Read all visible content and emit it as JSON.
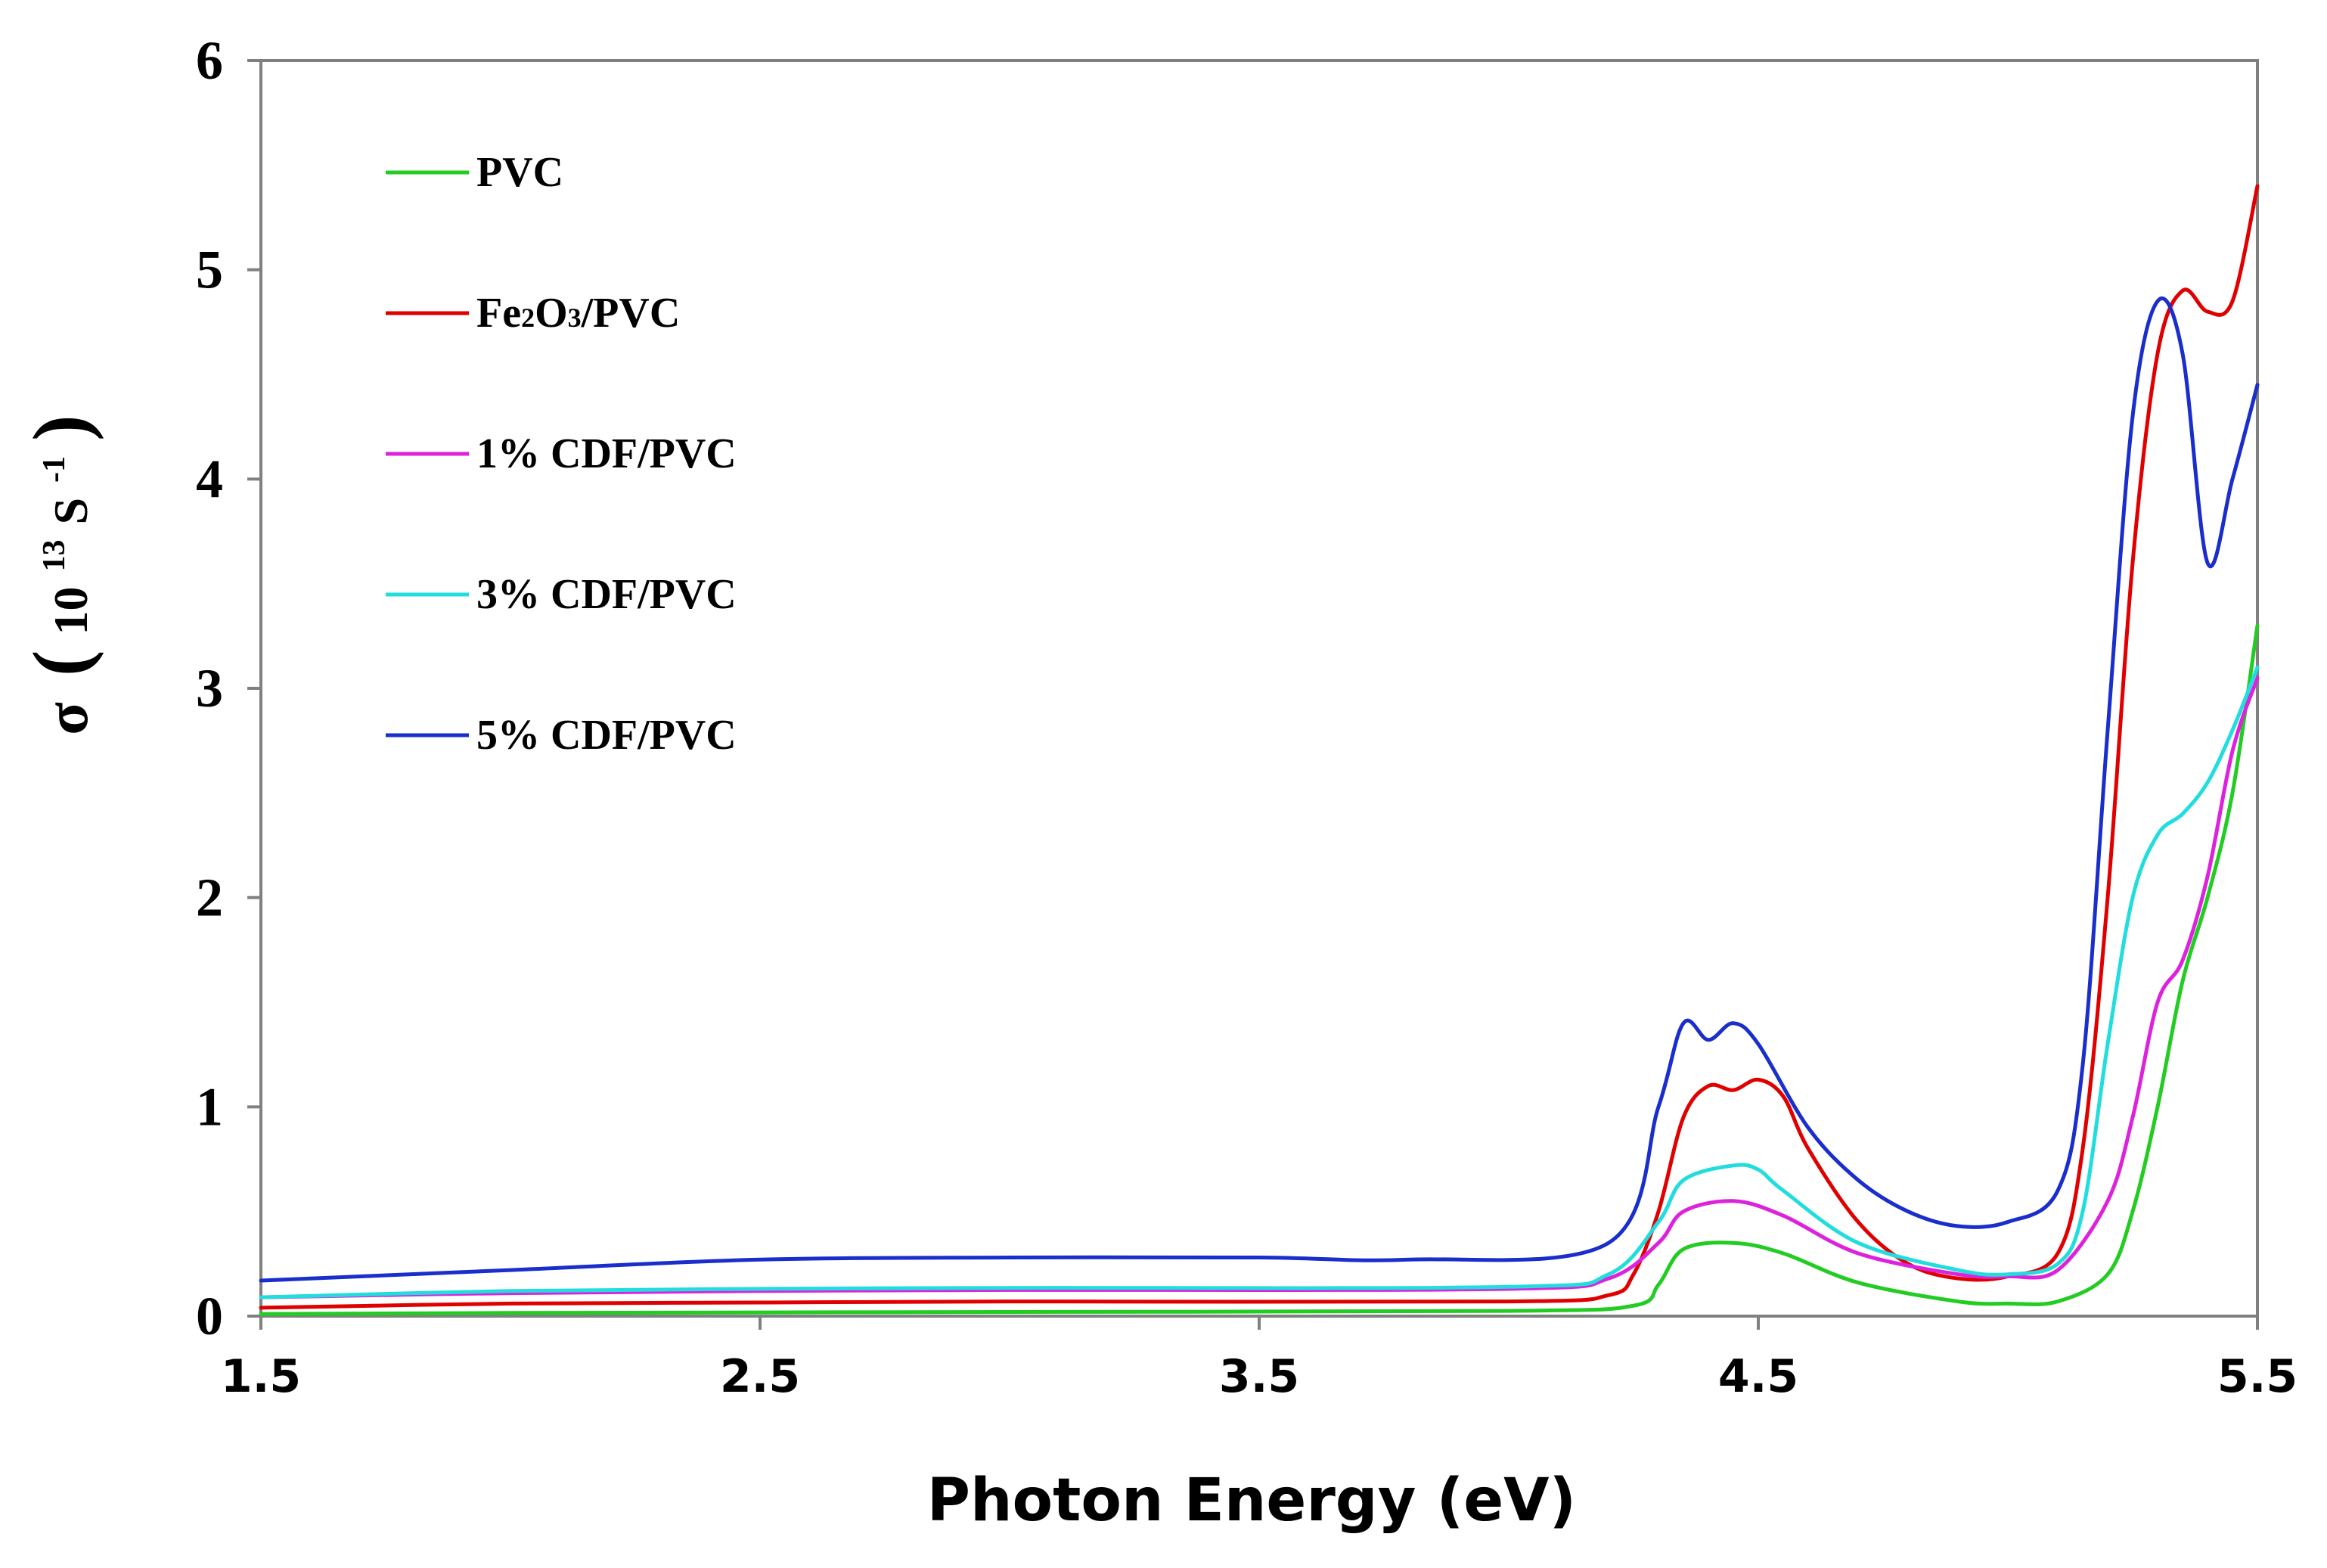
{
  "chart_data": {
    "type": "line",
    "title": "",
    "xlabel": "Photon Energy (eV)",
    "ylabel": {
      "symbol": "σ",
      "open": "(",
      "base": "10",
      "exponent": "13",
      "unit": " S",
      "unit_exponent": "-1",
      "close": ")"
    },
    "xlim": [
      1.5,
      5.5
    ],
    "ylim": [
      0,
      6
    ],
    "xticks": [
      "1.5",
      "2.5",
      "3.5",
      "4.5",
      "5.5"
    ],
    "yticks": [
      "0",
      "1",
      "2",
      "3",
      "4",
      "5",
      "6"
    ],
    "grid": false,
    "legend_position": "top-left",
    "series": [
      {
        "name": "PVC",
        "legend": {
          "main": "PVC"
        },
        "color": "#22cc22",
        "points": [
          [
            1.5,
            0.01
          ],
          [
            2.0,
            0.015
          ],
          [
            3.0,
            0.02
          ],
          [
            4.0,
            0.025
          ],
          [
            4.25,
            0.05
          ],
          [
            4.3,
            0.15
          ],
          [
            4.35,
            0.32
          ],
          [
            4.45,
            0.35
          ],
          [
            4.55,
            0.3
          ],
          [
            4.7,
            0.16
          ],
          [
            4.9,
            0.07
          ],
          [
            5.0,
            0.06
          ],
          [
            5.1,
            0.07
          ],
          [
            5.2,
            0.2
          ],
          [
            5.25,
            0.5
          ],
          [
            5.3,
            1.0
          ],
          [
            5.35,
            1.6
          ],
          [
            5.4,
            2.0
          ],
          [
            5.45,
            2.5
          ],
          [
            5.5,
            3.3
          ]
        ]
      },
      {
        "name": "Fe2O3/PVC",
        "legend": {
          "p1": "Fe",
          "s1": "2",
          "p2": "O",
          "s2": "3",
          "p3": "/PVC"
        },
        "color": "#e00000",
        "points": [
          [
            1.5,
            0.04
          ],
          [
            2.0,
            0.06
          ],
          [
            2.5,
            0.065
          ],
          [
            3.0,
            0.07
          ],
          [
            4.0,
            0.07
          ],
          [
            4.2,
            0.1
          ],
          [
            4.25,
            0.2
          ],
          [
            4.3,
            0.5
          ],
          [
            4.35,
            0.95
          ],
          [
            4.4,
            1.1
          ],
          [
            4.45,
            1.08
          ],
          [
            4.5,
            1.13
          ],
          [
            4.55,
            1.05
          ],
          [
            4.6,
            0.8
          ],
          [
            4.7,
            0.45
          ],
          [
            4.8,
            0.25
          ],
          [
            4.9,
            0.18
          ],
          [
            5.0,
            0.19
          ],
          [
            5.1,
            0.3
          ],
          [
            5.15,
            0.8
          ],
          [
            5.2,
            2.0
          ],
          [
            5.25,
            3.6
          ],
          [
            5.3,
            4.6
          ],
          [
            5.35,
            4.9
          ],
          [
            5.4,
            4.8
          ],
          [
            5.45,
            4.85
          ],
          [
            5.5,
            5.4
          ]
        ]
      },
      {
        "name": "1% CDF/PVC",
        "legend": {
          "main": "1% CDF/PVC"
        },
        "color": "#dd22dd",
        "points": [
          [
            1.5,
            0.09
          ],
          [
            2.0,
            0.11
          ],
          [
            2.5,
            0.12
          ],
          [
            3.0,
            0.125
          ],
          [
            4.0,
            0.13
          ],
          [
            4.2,
            0.18
          ],
          [
            4.3,
            0.35
          ],
          [
            4.35,
            0.5
          ],
          [
            4.45,
            0.55
          ],
          [
            4.55,
            0.48
          ],
          [
            4.7,
            0.3
          ],
          [
            4.9,
            0.2
          ],
          [
            5.0,
            0.19
          ],
          [
            5.1,
            0.22
          ],
          [
            5.2,
            0.55
          ],
          [
            5.25,
            0.95
          ],
          [
            5.3,
            1.5
          ],
          [
            5.35,
            1.7
          ],
          [
            5.4,
            2.1
          ],
          [
            5.45,
            2.7
          ],
          [
            5.5,
            3.05
          ]
        ]
      },
      {
        "name": "3% CDF/PVC",
        "legend": {
          "main": "3% CDF/PVC"
        },
        "color": "#22dddd",
        "points": [
          [
            1.5,
            0.09
          ],
          [
            2.0,
            0.12
          ],
          [
            2.5,
            0.13
          ],
          [
            3.0,
            0.135
          ],
          [
            4.0,
            0.14
          ],
          [
            4.2,
            0.2
          ],
          [
            4.3,
            0.45
          ],
          [
            4.35,
            0.65
          ],
          [
            4.45,
            0.72
          ],
          [
            4.5,
            0.7
          ],
          [
            4.55,
            0.6
          ],
          [
            4.7,
            0.35
          ],
          [
            4.9,
            0.22
          ],
          [
            5.0,
            0.2
          ],
          [
            5.1,
            0.25
          ],
          [
            5.15,
            0.5
          ],
          [
            5.2,
            1.3
          ],
          [
            5.25,
            2.0
          ],
          [
            5.3,
            2.3
          ],
          [
            5.35,
            2.4
          ],
          [
            5.4,
            2.55
          ],
          [
            5.45,
            2.8
          ],
          [
            5.5,
            3.1
          ]
        ]
      },
      {
        "name": "5% CDF/PVC",
        "legend": {
          "main": "5% CDF/PVC"
        },
        "color": "#1a2ecc",
        "points": [
          [
            1.5,
            0.17
          ],
          [
            2.0,
            0.22
          ],
          [
            2.5,
            0.27
          ],
          [
            3.0,
            0.28
          ],
          [
            3.5,
            0.28
          ],
          [
            3.8,
            0.27
          ],
          [
            4.2,
            0.35
          ],
          [
            4.3,
            1.0
          ],
          [
            4.35,
            1.4
          ],
          [
            4.4,
            1.32
          ],
          [
            4.45,
            1.4
          ],
          [
            4.5,
            1.3
          ],
          [
            4.6,
            0.9
          ],
          [
            4.7,
            0.65
          ],
          [
            4.8,
            0.5
          ],
          [
            4.9,
            0.43
          ],
          [
            5.0,
            0.45
          ],
          [
            5.1,
            0.6
          ],
          [
            5.15,
            1.2
          ],
          [
            5.2,
            2.8
          ],
          [
            5.25,
            4.3
          ],
          [
            5.3,
            4.85
          ],
          [
            5.35,
            4.6
          ],
          [
            5.4,
            3.6
          ],
          [
            5.45,
            4.0
          ],
          [
            5.5,
            4.45
          ]
        ]
      }
    ]
  }
}
